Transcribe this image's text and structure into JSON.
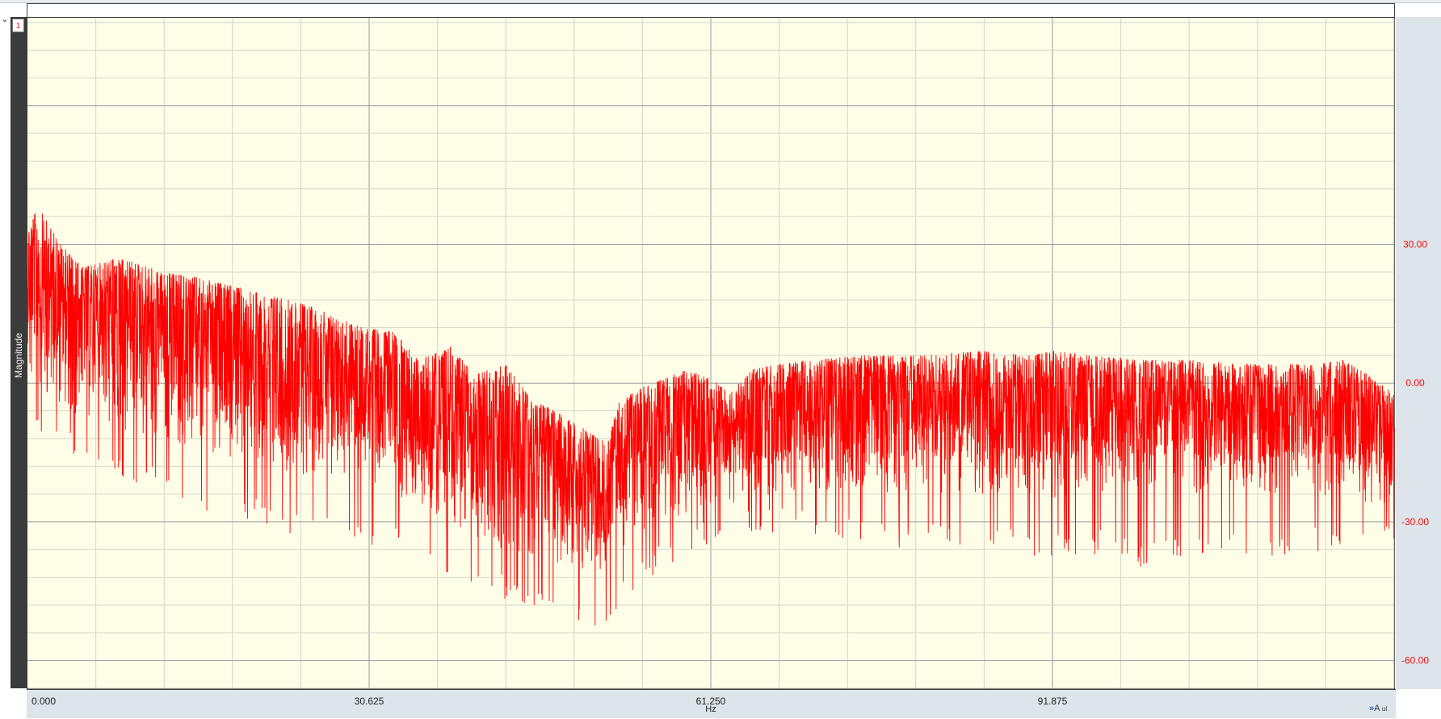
{
  "channel": {
    "number": "1"
  },
  "chart_data": {
    "type": "line",
    "color": "#ff0000",
    "background": "#fdfde8",
    "ylabel": "Magnitude",
    "xlabel": "Hz",
    "xlim": [
      0,
      122.5
    ],
    "ylim": [
      -66,
      79
    ],
    "grid": true,
    "x_ticks": [
      "0.000",
      "30.625",
      "61.250",
      "91.875"
    ],
    "y_ticks": [
      "30.00",
      "0.00",
      "-30.00",
      "-60.00"
    ],
    "envelope": {
      "x": [
        0,
        1,
        3,
        5,
        8,
        10,
        12,
        15,
        20,
        25,
        30,
        33,
        35,
        38,
        40,
        43,
        45,
        48,
        50,
        52,
        53,
        55,
        57,
        59,
        61.25,
        63,
        65,
        67,
        70,
        75,
        80,
        85,
        90,
        92,
        95,
        100,
        105,
        110,
        115,
        118,
        120,
        122.5
      ],
      "upper": [
        34,
        38,
        30,
        25,
        27,
        26,
        24,
        23,
        20,
        17,
        12,
        11,
        5,
        8,
        2,
        4,
        -3,
        -7,
        -10,
        -13,
        -4,
        -1,
        1,
        3,
        1,
        -2,
        3,
        4,
        5,
        6,
        6,
        7,
        6,
        7,
        6,
        5,
        5,
        4,
        4,
        5,
        2,
        -2
      ],
      "lower": [
        0,
        -2,
        -5,
        -8,
        -10,
        -11,
        -12,
        -14,
        -17,
        -20,
        -21,
        -24,
        -27,
        -30,
        -34,
        -36,
        -38,
        -39,
        -41,
        -42,
        -36,
        -33,
        -30,
        -28,
        -27,
        -26,
        -25,
        -24,
        -24,
        -24,
        -24,
        -24,
        -24,
        -25,
        -24,
        -23,
        -24,
        -24,
        -24,
        -25,
        -26,
        -28
      ],
      "spike_min": [
        -9,
        -12,
        -15,
        -17,
        -20,
        -22,
        -24,
        -27,
        -30,
        -34,
        -35,
        -37,
        -40,
        -43,
        -45,
        -47,
        -49,
        -51,
        -52,
        -53,
        -48,
        -45,
        -40,
        -38,
        -35,
        -34,
        -33,
        -33,
        -33,
        -35,
        -36,
        -37,
        -38,
        -39,
        -37,
        -40,
        -39,
        -38,
        -37,
        -36,
        -35,
        -34
      ]
    }
  }
}
